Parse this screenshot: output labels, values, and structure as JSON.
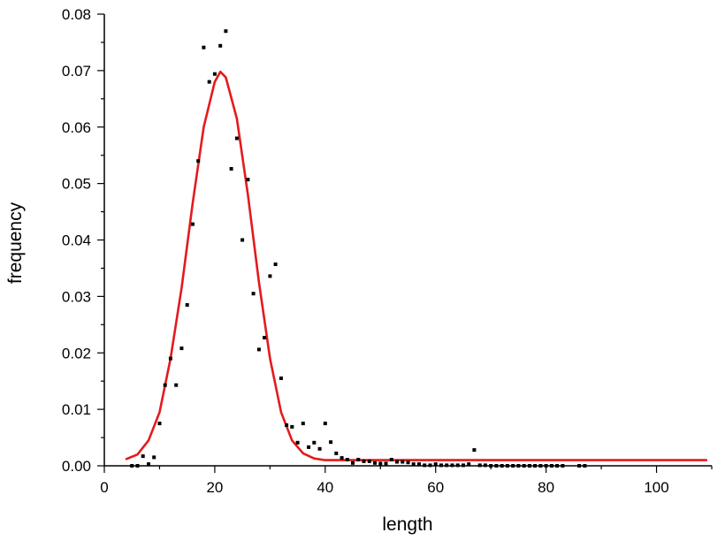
{
  "chart_data": {
    "type": "scatter",
    "title": "",
    "xlabel": "length",
    "ylabel": "frequency",
    "xlim": [
      0,
      110
    ],
    "ylim": [
      0,
      0.08
    ],
    "x_ticks": [
      0,
      20,
      40,
      60,
      80,
      100
    ],
    "x_tick_labels": [
      "0",
      "20",
      "40",
      "60",
      "80",
      "100"
    ],
    "y_ticks": [
      0,
      0.01,
      0.02,
      0.03,
      0.04,
      0.05,
      0.06,
      0.07,
      0.08
    ],
    "y_tick_labels": [
      "0.00",
      "0.01",
      "0.02",
      "0.03",
      "0.04",
      "0.05",
      "0.06",
      "0.07",
      "0.08"
    ],
    "grid": false,
    "legend": "none",
    "colors": {
      "points": "#000000",
      "fit": "#e41a1c",
      "axis": "#000000"
    },
    "series": [
      {
        "kind": "scatter",
        "points": [
          [
            5,
            0.0
          ],
          [
            6,
            0.0
          ],
          [
            7,
            0.0017
          ],
          [
            8,
            0.0003
          ],
          [
            9,
            0.0015
          ],
          [
            10,
            0.0075
          ],
          [
            11,
            0.0143
          ],
          [
            12,
            0.019
          ],
          [
            13,
            0.0143
          ],
          [
            14,
            0.0208
          ],
          [
            15,
            0.0285
          ],
          [
            16,
            0.0428
          ],
          [
            17,
            0.054
          ],
          [
            18,
            0.0741
          ],
          [
            19,
            0.068
          ],
          [
            20,
            0.0694
          ],
          [
            21,
            0.0744
          ],
          [
            22,
            0.077
          ],
          [
            23,
            0.0526
          ],
          [
            24,
            0.058
          ],
          [
            25,
            0.04
          ],
          [
            26,
            0.0507
          ],
          [
            27,
            0.0305
          ],
          [
            28,
            0.0206
          ],
          [
            29,
            0.0227
          ],
          [
            30,
            0.0336
          ],
          [
            31,
            0.0357
          ],
          [
            32,
            0.0155
          ],
          [
            33,
            0.0072
          ],
          [
            34,
            0.0069
          ],
          [
            35,
            0.0041
          ],
          [
            36,
            0.0075
          ],
          [
            37,
            0.0033
          ],
          [
            38,
            0.0041
          ],
          [
            39,
            0.003
          ],
          [
            40,
            0.0075
          ],
          [
            41,
            0.0042
          ],
          [
            42,
            0.0022
          ],
          [
            43,
            0.0014
          ],
          [
            44,
            0.0011
          ],
          [
            45,
            0.0005
          ],
          [
            46,
            0.0011
          ],
          [
            47,
            0.0008
          ],
          [
            48,
            0.0008
          ],
          [
            49,
            0.0005
          ],
          [
            50,
            0.0004
          ],
          [
            51,
            0.0004
          ],
          [
            52,
            0.0011
          ],
          [
            53,
            0.0007
          ],
          [
            54,
            0.0007
          ],
          [
            55,
            0.0006
          ],
          [
            56,
            0.0003
          ],
          [
            57,
            0.0003
          ],
          [
            58,
            0.0001
          ],
          [
            59,
            0.0001
          ],
          [
            60,
            0.0003
          ],
          [
            61,
            0.0001
          ],
          [
            62,
            0.0001
          ],
          [
            63,
            0.0001
          ],
          [
            64,
            0.0001
          ],
          [
            65,
            0.0001
          ],
          [
            66,
            0.0003
          ],
          [
            67,
            0.0028
          ],
          [
            68,
            0.0001
          ],
          [
            69,
            0.0001
          ],
          [
            70,
            0.0
          ],
          [
            71,
            0.0
          ],
          [
            72,
            0.0
          ],
          [
            73,
            0.0
          ],
          [
            74,
            0.0
          ],
          [
            75,
            0.0
          ],
          [
            76,
            0.0
          ],
          [
            77,
            0.0
          ],
          [
            78,
            0.0
          ],
          [
            79,
            0.0
          ],
          [
            80,
            0.0
          ],
          [
            81,
            0.0
          ],
          [
            82,
            0.0
          ],
          [
            83,
            0.0
          ],
          [
            86,
            0.0
          ],
          [
            87,
            0.0
          ]
        ]
      },
      {
        "kind": "line",
        "points": [
          [
            4,
            0.0012
          ],
          [
            6,
            0.002
          ],
          [
            8,
            0.0045
          ],
          [
            10,
            0.0095
          ],
          [
            12,
            0.019
          ],
          [
            14,
            0.0315
          ],
          [
            16,
            0.0465
          ],
          [
            18,
            0.06
          ],
          [
            20,
            0.068
          ],
          [
            21,
            0.0698
          ],
          [
            22,
            0.0688
          ],
          [
            24,
            0.0615
          ],
          [
            26,
            0.048
          ],
          [
            28,
            0.0325
          ],
          [
            30,
            0.019
          ],
          [
            32,
            0.0095
          ],
          [
            34,
            0.0045
          ],
          [
            36,
            0.0022
          ],
          [
            38,
            0.0013
          ],
          [
            40,
            0.001
          ],
          [
            45,
            0.001
          ],
          [
            60,
            0.001
          ],
          [
            80,
            0.001
          ],
          [
            109,
            0.001
          ]
        ]
      }
    ]
  }
}
